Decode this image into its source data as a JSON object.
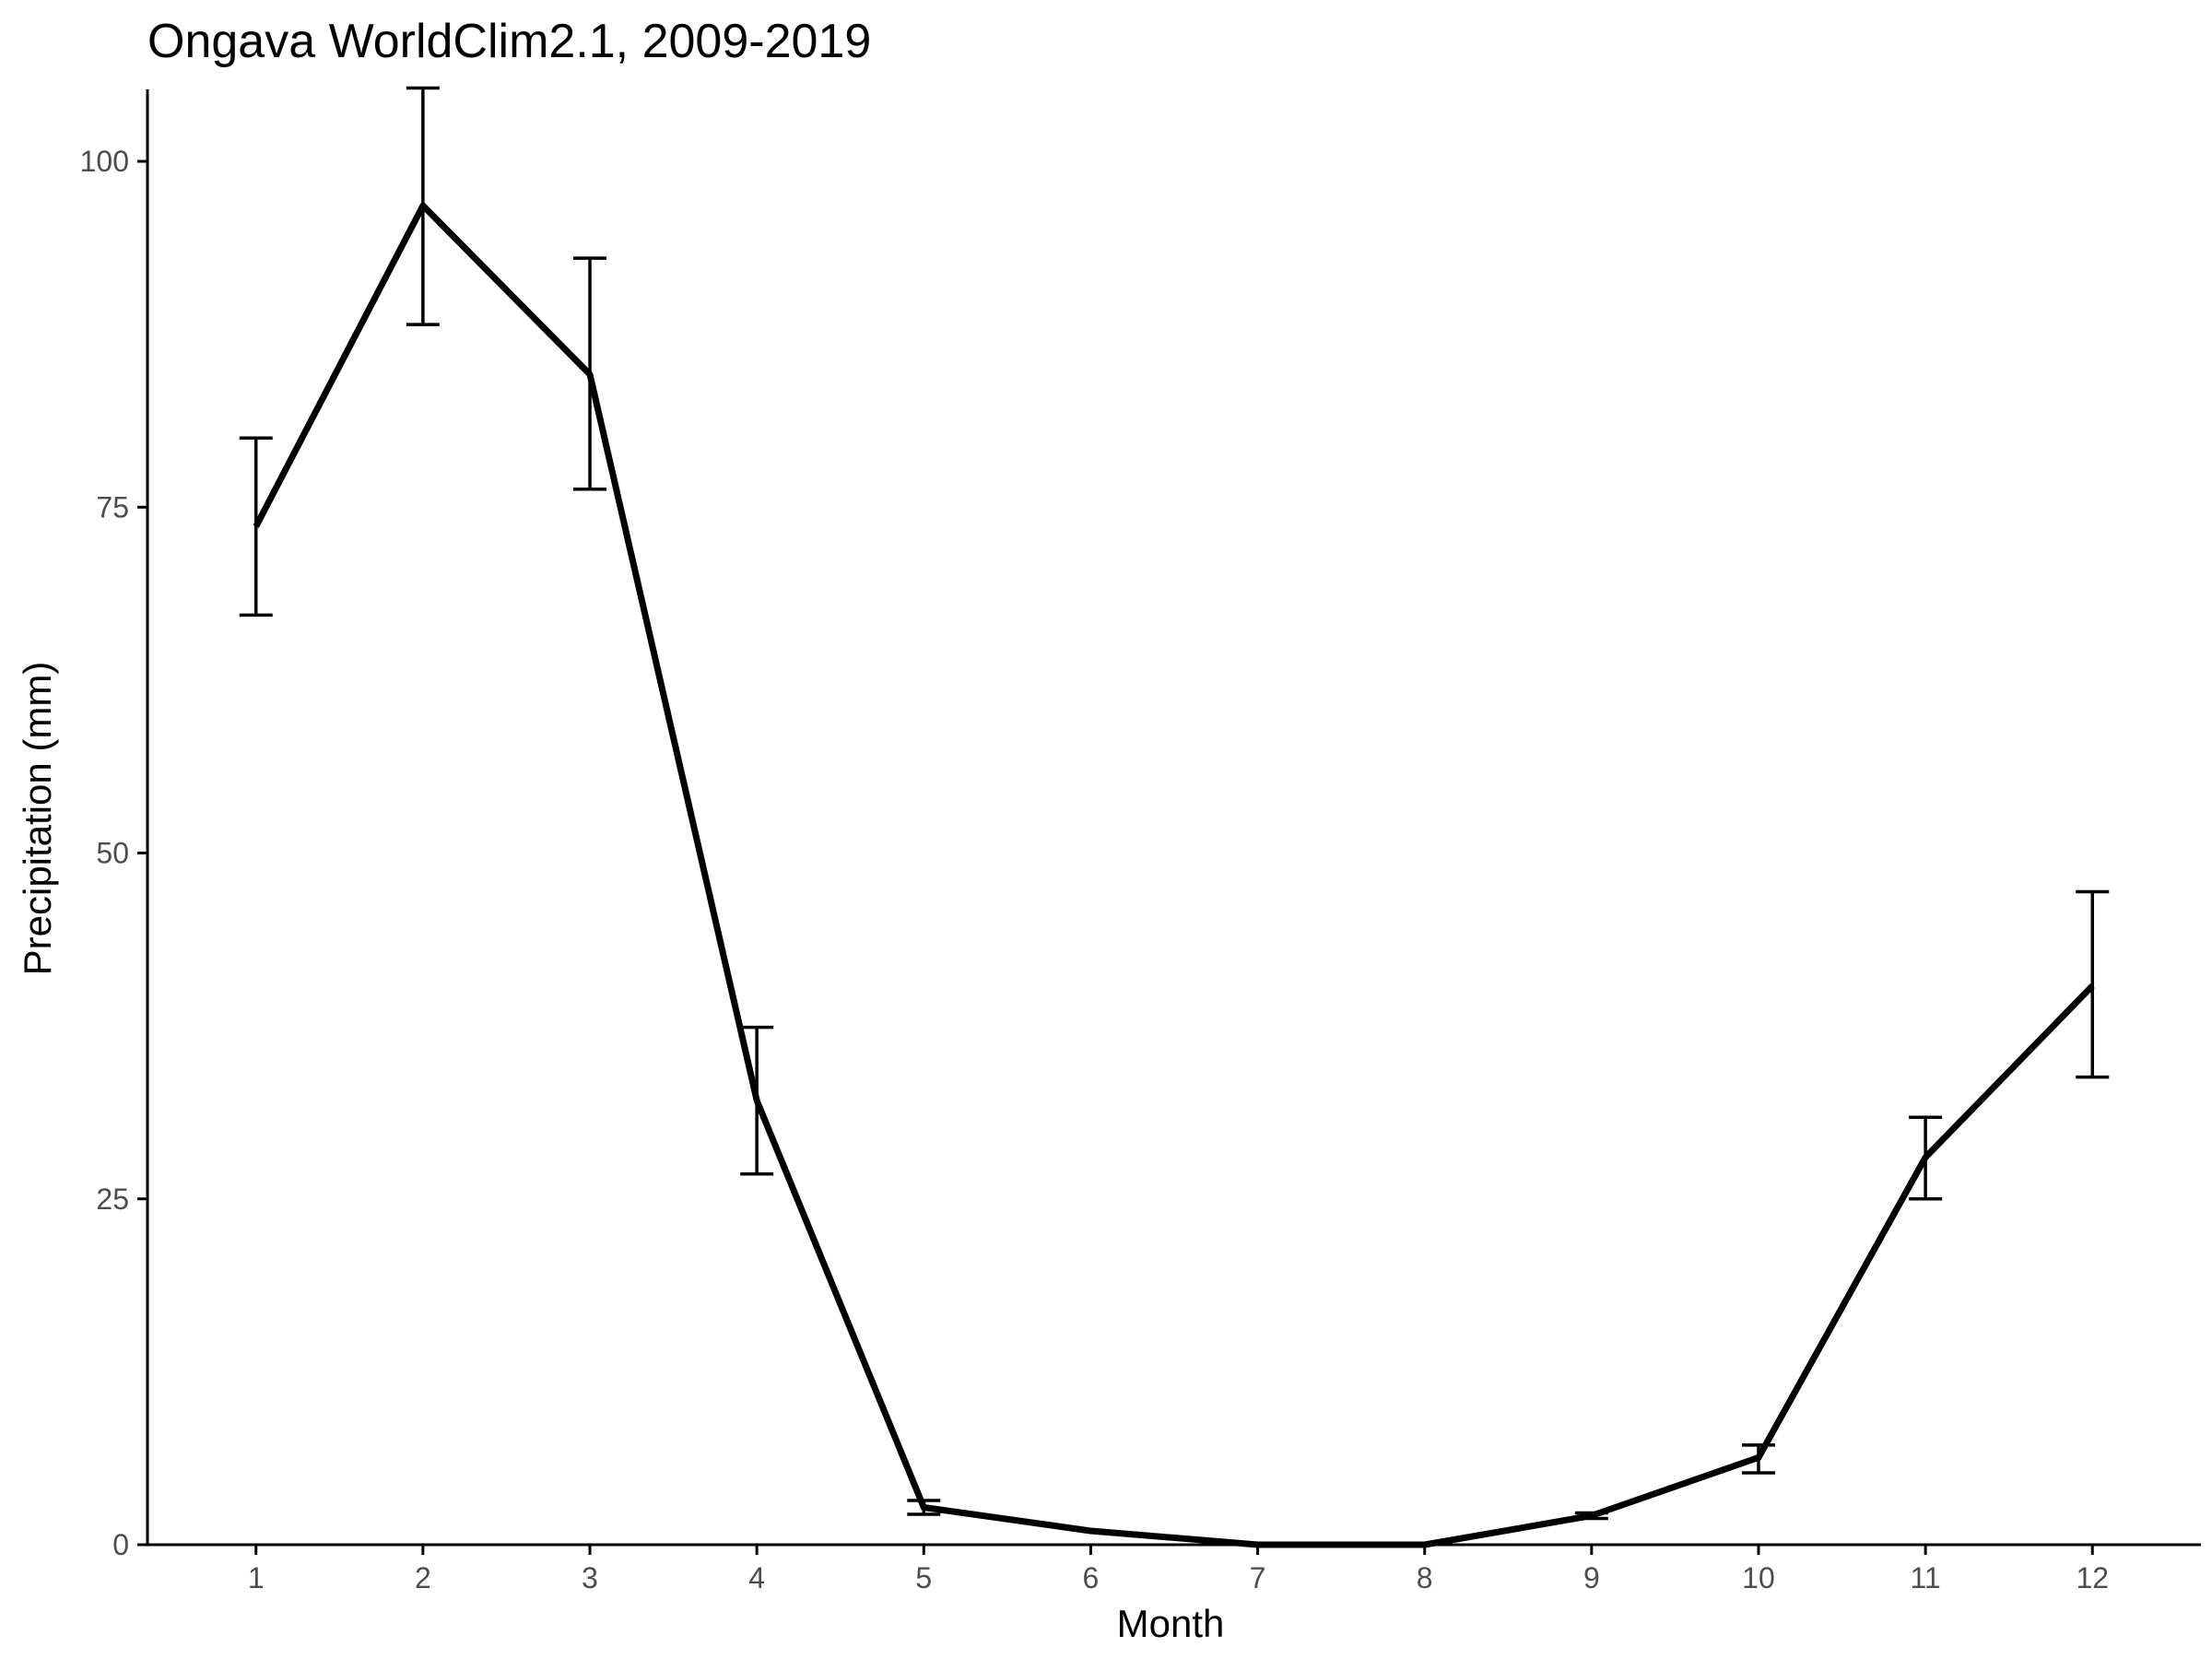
{
  "chart_data": {
    "type": "line",
    "title": "Ongava WorldClim2.1, 2009-2019",
    "xlabel": "Month",
    "ylabel": "Precipitation (mm)",
    "x": [
      1,
      2,
      3,
      4,
      5,
      6,
      7,
      8,
      9,
      10,
      11,
      12
    ],
    "x_ticks": [
      "1",
      "2",
      "3",
      "4",
      "5",
      "6",
      "7",
      "8",
      "9",
      "10",
      "11",
      "12"
    ],
    "xlim": [
      0.35,
      12.65
    ],
    "y_ticks": [
      0,
      25,
      50,
      75,
      100
    ],
    "ylim": [
      0,
      105.2
    ],
    "grid": false,
    "legend": "none",
    "series": [
      {
        "values": [
          73.6,
          96.8,
          84.6,
          32.1,
          2.7,
          1.0,
          0.0,
          0.0,
          2.1,
          6.3,
          28.0,
          40.4
        ],
        "error_low": [
          67.2,
          88.2,
          76.3,
          26.8,
          2.2,
          1.0,
          0.0,
          0.0,
          1.9,
          5.2,
          25.0,
          33.8
        ],
        "error_high": [
          80.0,
          105.3,
          93.0,
          37.4,
          3.2,
          1.0,
          0.0,
          0.0,
          2.3,
          7.2,
          30.9,
          47.2
        ],
        "color": "#000000"
      }
    ]
  }
}
